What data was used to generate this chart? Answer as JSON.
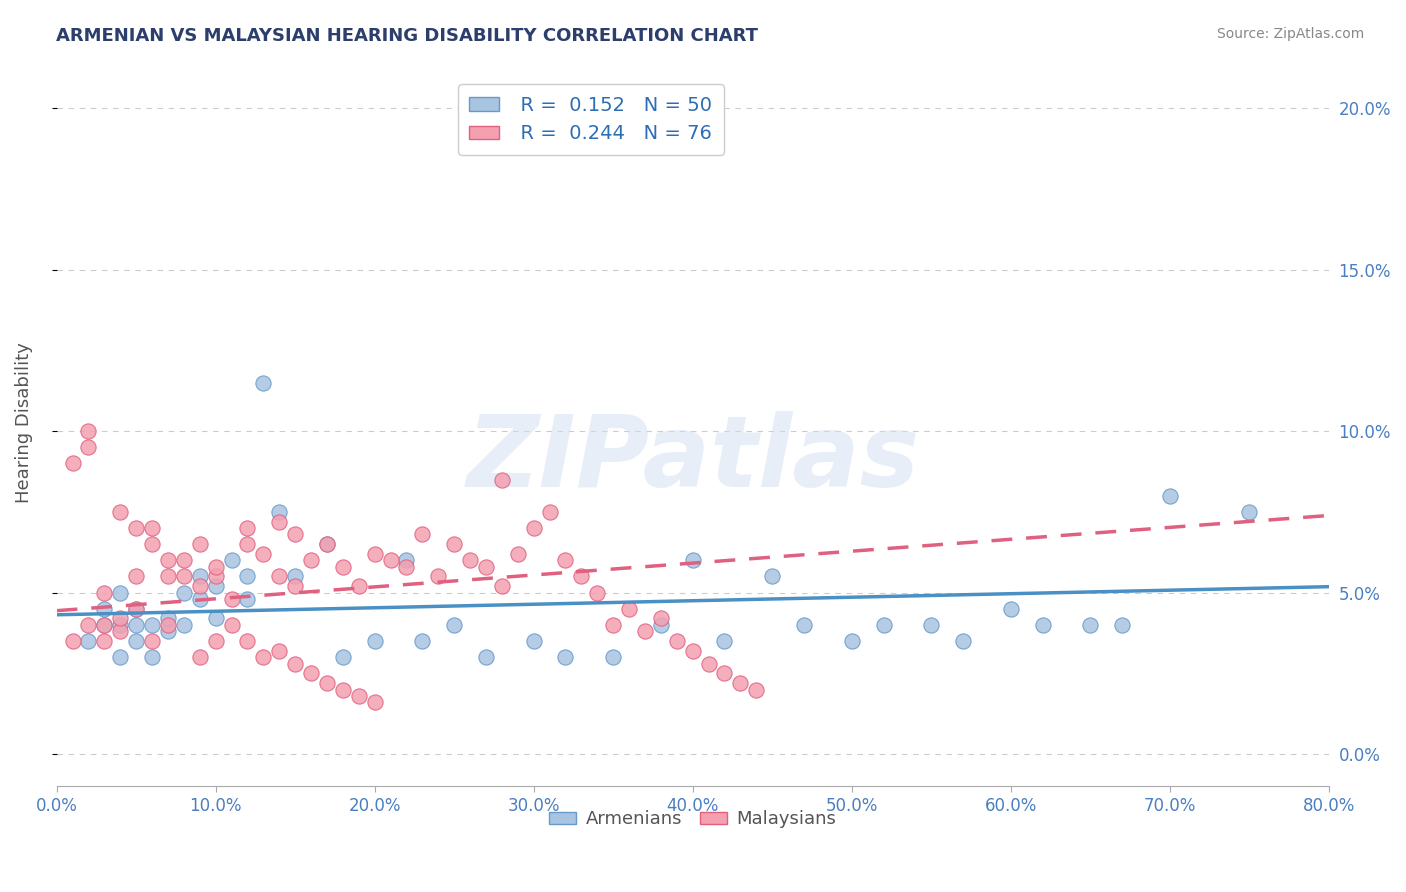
{
  "title": "ARMENIAN VS MALAYSIAN HEARING DISABILITY CORRELATION CHART",
  "source": "Source: ZipAtlas.com",
  "ylabel": "Hearing Disability",
  "xlabel": "",
  "xlim": [
    0.0,
    0.8
  ],
  "ylim": [
    -0.01,
    0.215
  ],
  "xticks": [
    0.0,
    0.1,
    0.2,
    0.3,
    0.4,
    0.5,
    0.6,
    0.7,
    0.8
  ],
  "yticks_right": [
    0.0,
    0.05,
    0.1,
    0.15,
    0.2
  ],
  "yticks_right_labels": [
    "0.0%",
    "5.0%",
    "10.0%",
    "15.0%",
    "20.0%"
  ],
  "grid_color": "#cccccc",
  "background_color": "#ffffff",
  "armenian_color": "#a8c4e0",
  "armenian_edge_color": "#6699cc",
  "malaysian_color": "#f4a0b0",
  "malaysian_edge_color": "#e06080",
  "armenian_R": 0.152,
  "armenian_N": 50,
  "malaysian_R": 0.244,
  "malaysian_N": 76,
  "armenian_line_color": "#4a90c4",
  "malaysian_line_color": "#e06080",
  "watermark": "ZIPatlas",
  "watermark_color": "#d0dff0",
  "title_color": "#2c3e6b",
  "legend_R_color": "#2c6eb5",
  "legend_N_color": "#2c6eb5",
  "armenians_scatter_x": [
    0.02,
    0.03,
    0.03,
    0.04,
    0.04,
    0.04,
    0.05,
    0.05,
    0.05,
    0.06,
    0.06,
    0.07,
    0.07,
    0.08,
    0.08,
    0.09,
    0.09,
    0.1,
    0.1,
    0.11,
    0.12,
    0.12,
    0.13,
    0.14,
    0.15,
    0.17,
    0.18,
    0.2,
    0.22,
    0.23,
    0.25,
    0.27,
    0.3,
    0.32,
    0.35,
    0.38,
    0.4,
    0.42,
    0.45,
    0.47,
    0.5,
    0.52,
    0.55,
    0.57,
    0.6,
    0.62,
    0.65,
    0.67,
    0.7,
    0.75
  ],
  "armenians_scatter_y": [
    0.035,
    0.04,
    0.045,
    0.03,
    0.04,
    0.05,
    0.035,
    0.04,
    0.045,
    0.03,
    0.04,
    0.038,
    0.042,
    0.04,
    0.05,
    0.048,
    0.055,
    0.042,
    0.052,
    0.06,
    0.055,
    0.048,
    0.115,
    0.075,
    0.055,
    0.065,
    0.03,
    0.035,
    0.06,
    0.035,
    0.04,
    0.03,
    0.035,
    0.03,
    0.03,
    0.04,
    0.06,
    0.035,
    0.055,
    0.04,
    0.035,
    0.04,
    0.04,
    0.035,
    0.045,
    0.04,
    0.04,
    0.04,
    0.08,
    0.075
  ],
  "malaysians_scatter_x": [
    0.01,
    0.01,
    0.02,
    0.02,
    0.02,
    0.03,
    0.03,
    0.03,
    0.04,
    0.04,
    0.04,
    0.05,
    0.05,
    0.05,
    0.06,
    0.06,
    0.06,
    0.07,
    0.07,
    0.07,
    0.08,
    0.08,
    0.09,
    0.09,
    0.1,
    0.1,
    0.11,
    0.12,
    0.12,
    0.13,
    0.14,
    0.14,
    0.15,
    0.15,
    0.16,
    0.17,
    0.18,
    0.19,
    0.2,
    0.21,
    0.22,
    0.23,
    0.24,
    0.25,
    0.26,
    0.27,
    0.28,
    0.29,
    0.3,
    0.31,
    0.32,
    0.33,
    0.34,
    0.35,
    0.36,
    0.37,
    0.38,
    0.39,
    0.4,
    0.41,
    0.42,
    0.43,
    0.44,
    0.28,
    0.09,
    0.1,
    0.11,
    0.12,
    0.13,
    0.14,
    0.15,
    0.16,
    0.17,
    0.18,
    0.19,
    0.2
  ],
  "malaysians_scatter_y": [
    0.035,
    0.09,
    0.095,
    0.1,
    0.04,
    0.035,
    0.04,
    0.05,
    0.038,
    0.042,
    0.075,
    0.045,
    0.055,
    0.07,
    0.035,
    0.065,
    0.07,
    0.04,
    0.055,
    0.06,
    0.055,
    0.06,
    0.052,
    0.065,
    0.055,
    0.058,
    0.048,
    0.065,
    0.07,
    0.062,
    0.055,
    0.072,
    0.052,
    0.068,
    0.06,
    0.065,
    0.058,
    0.052,
    0.062,
    0.06,
    0.058,
    0.068,
    0.055,
    0.065,
    0.06,
    0.058,
    0.052,
    0.062,
    0.07,
    0.075,
    0.06,
    0.055,
    0.05,
    0.04,
    0.045,
    0.038,
    0.042,
    0.035,
    0.032,
    0.028,
    0.025,
    0.022,
    0.02,
    0.085,
    0.03,
    0.035,
    0.04,
    0.035,
    0.03,
    0.032,
    0.028,
    0.025,
    0.022,
    0.02,
    0.018,
    0.016
  ]
}
